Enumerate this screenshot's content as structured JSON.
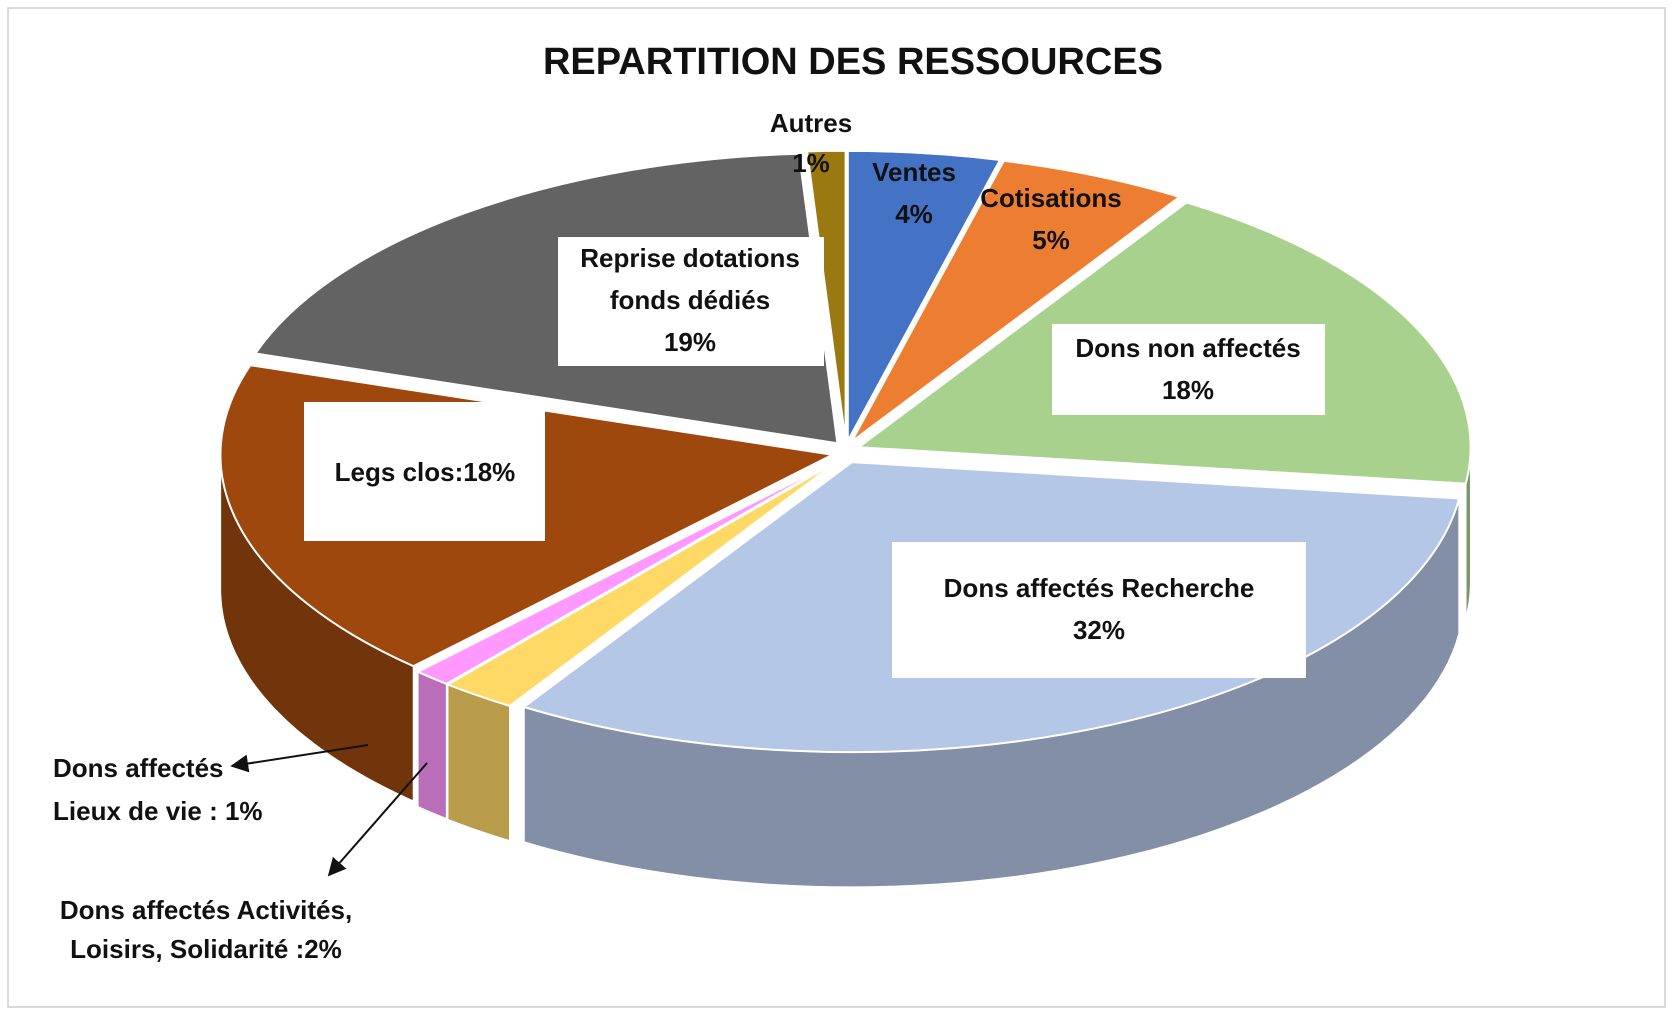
{
  "chart_data": {
    "type": "pie",
    "title": "REPARTITION DES RESSOURCES",
    "values": [
      1,
      4,
      5,
      18,
      32,
      2,
      1,
      18,
      19
    ],
    "colors": [
      "#9a7a10",
      "#4472c4",
      "#ed7d31",
      "#a9d18e",
      "#b4c7e7",
      "#ffd966",
      "#ff99ff",
      "#9e480e",
      "#636363"
    ],
    "labels": [
      [
        "Autres",
        "1%"
      ],
      [
        "Ventes",
        "4%"
      ],
      [
        "Cotisations",
        "5%"
      ],
      [
        "Dons non affectés",
        "18%"
      ],
      [
        "Dons affectés Recherche",
        "32%"
      ],
      [
        "Dons affectés Activités,",
        "Loisirs, Solidarité :2%"
      ],
      [
        "Dons affectés",
        "Lieux de vie : 1%"
      ],
      [
        "Legs clos:18%"
      ],
      [
        "Reprise dotations",
        "fonds  dédiés",
        "19%"
      ]
    ]
  }
}
